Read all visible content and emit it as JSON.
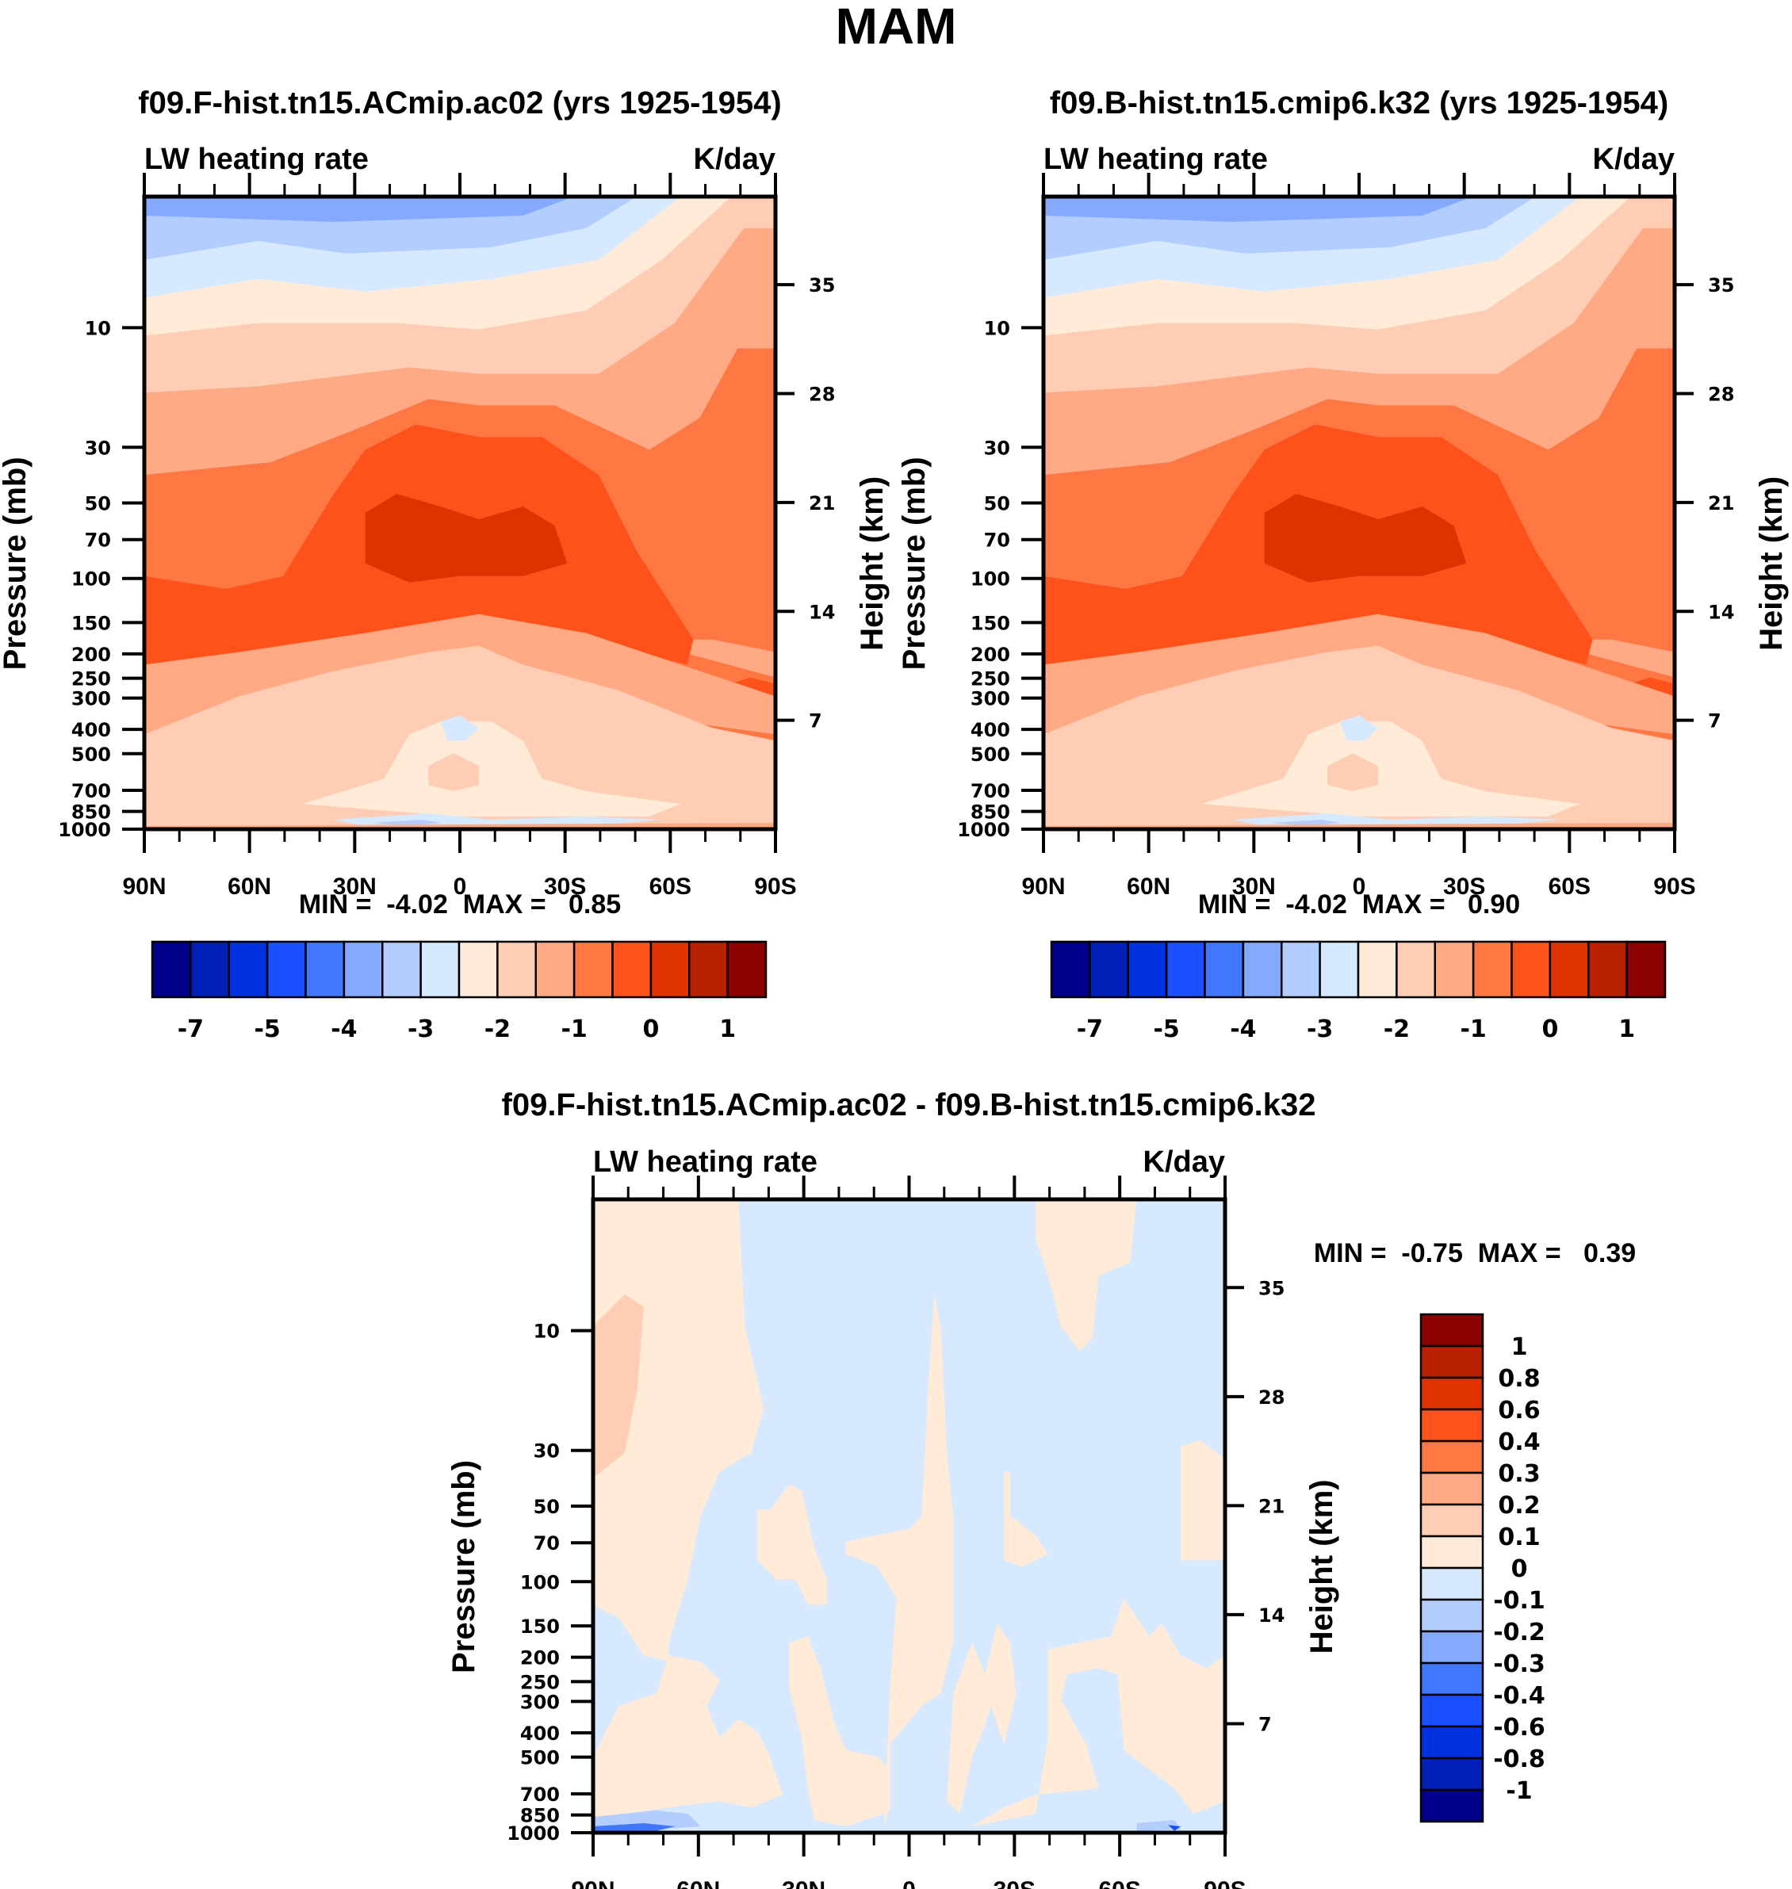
{
  "figure": {
    "title": "MAM"
  },
  "colors": {
    "palette": [
      "#00008b",
      "#0020b8",
      "#0032e0",
      "#1a50ff",
      "#4177ff",
      "#84a9ff",
      "#b3cdff",
      "#d6e9ff",
      "#ffebd8",
      "#ffcdb3",
      "#ffaa84",
      "#ff7844",
      "#ff521a",
      "#e03200",
      "#b82000",
      "#8b0000"
    ]
  },
  "chart_data": [
    {
      "type": "heatmap",
      "subtype": "filled-contour",
      "title": "f09.F-hist.tn15.ACmip.ac02 (yrs 1925-1954)",
      "left_string": "LW heating rate",
      "right_string": "K/day",
      "xlabel": "",
      "ylabel": "Pressure (mb)",
      "ylabel_right": "Height (km)",
      "x_ticks": [
        "90N",
        "60N",
        "30N",
        "0",
        "30S",
        "60S",
        "90S"
      ],
      "x_range": [
        90,
        -90
      ],
      "y_ticks": [
        "10",
        "30",
        "50",
        "70",
        "100",
        "150",
        "200",
        "250",
        "300",
        "400",
        "500",
        "700",
        "850",
        "1000"
      ],
      "y_tick_values": [
        10,
        30,
        50,
        70,
        100,
        150,
        200,
        250,
        300,
        400,
        500,
        700,
        850,
        1000
      ],
      "y_range": [
        3,
        1000
      ],
      "y_scale": "log",
      "y_right_ticks": [
        "35",
        "28",
        "21",
        "14",
        "7"
      ],
      "y_right_tick_values": [
        35,
        28,
        21,
        14,
        7
      ],
      "stats": "MIN =  -4.02  MAX =   0.85",
      "min": -4.02,
      "max": 0.85,
      "colorbar": {
        "orientation": "horizontal",
        "labels": [
          "-7",
          "-5",
          "-4",
          "-3",
          "-2",
          "-1",
          "0",
          "1"
        ]
      },
      "description": "Negative (cooling -3 to -1 K/day, blue) in upper stratosphere north/tropics; strongest heating-rate band -0.5 to 0.5 (dark red core) near 70-100 mb tropics; lighter values near surface."
    },
    {
      "type": "heatmap",
      "subtype": "filled-contour",
      "title": "f09.B-hist.tn15.cmip6.k32 (yrs 1925-1954)",
      "left_string": "LW heating rate",
      "right_string": "K/day",
      "xlabel": "",
      "ylabel": "Pressure (mb)",
      "ylabel_right": "Height (km)",
      "x_ticks": [
        "90N",
        "60N",
        "30N",
        "0",
        "30S",
        "60S",
        "90S"
      ],
      "x_range": [
        90,
        -90
      ],
      "y_ticks": [
        "10",
        "30",
        "50",
        "70",
        "100",
        "150",
        "200",
        "250",
        "300",
        "400",
        "500",
        "700",
        "850",
        "1000"
      ],
      "y_tick_values": [
        10,
        30,
        50,
        70,
        100,
        150,
        200,
        250,
        300,
        400,
        500,
        700,
        850,
        1000
      ],
      "y_range": [
        3,
        1000
      ],
      "y_scale": "log",
      "y_right_ticks": [
        "35",
        "28",
        "21",
        "14",
        "7"
      ],
      "y_right_tick_values": [
        35,
        28,
        21,
        14,
        7
      ],
      "stats": "MIN =  -4.02  MAX =   0.90",
      "min": -4.02,
      "max": 0.9,
      "colorbar": {
        "orientation": "horizontal",
        "labels": [
          "-7",
          "-5",
          "-4",
          "-3",
          "-2",
          "-1",
          "0",
          "1"
        ]
      }
    },
    {
      "type": "heatmap",
      "subtype": "filled-contour",
      "title": "f09.F-hist.tn15.ACmip.ac02 - f09.B-hist.tn15.cmip6.k32",
      "left_string": "LW heating rate",
      "right_string": "K/day",
      "xlabel": "",
      "ylabel": "Pressure (mb)",
      "ylabel_right": "Height (km)",
      "x_ticks": [
        "90N",
        "60N",
        "30N",
        "0",
        "30S",
        "60S",
        "90S"
      ],
      "x_range": [
        90,
        -90
      ],
      "y_ticks": [
        "10",
        "30",
        "50",
        "70",
        "100",
        "150",
        "200",
        "250",
        "300",
        "400",
        "500",
        "700",
        "850",
        "1000"
      ],
      "y_tick_values": [
        10,
        30,
        50,
        70,
        100,
        150,
        200,
        250,
        300,
        400,
        500,
        700,
        850,
        1000
      ],
      "y_range": [
        3,
        1000
      ],
      "y_scale": "log",
      "y_right_ticks": [
        "35",
        "28",
        "21",
        "14",
        "7"
      ],
      "y_right_tick_values": [
        35,
        28,
        21,
        14,
        7
      ],
      "stats": "MIN =  -0.75  MAX =   0.39",
      "min": -0.75,
      "max": 0.39,
      "colorbar": {
        "orientation": "vertical",
        "labels": [
          "1",
          "0.8",
          "0.6",
          "0.4",
          "0.3",
          "0.2",
          "0.1",
          "0",
          "-0.1",
          "-0.2",
          "-0.3",
          "-0.4",
          "-0.6",
          "-0.8",
          "-1"
        ]
      },
      "description": "Mostly small differences between -0.1 and 0.1 K/day; 0.1-0.2 patch near 90N at 10-50 mb; blue negative pockets near surface at high latitudes."
    }
  ]
}
